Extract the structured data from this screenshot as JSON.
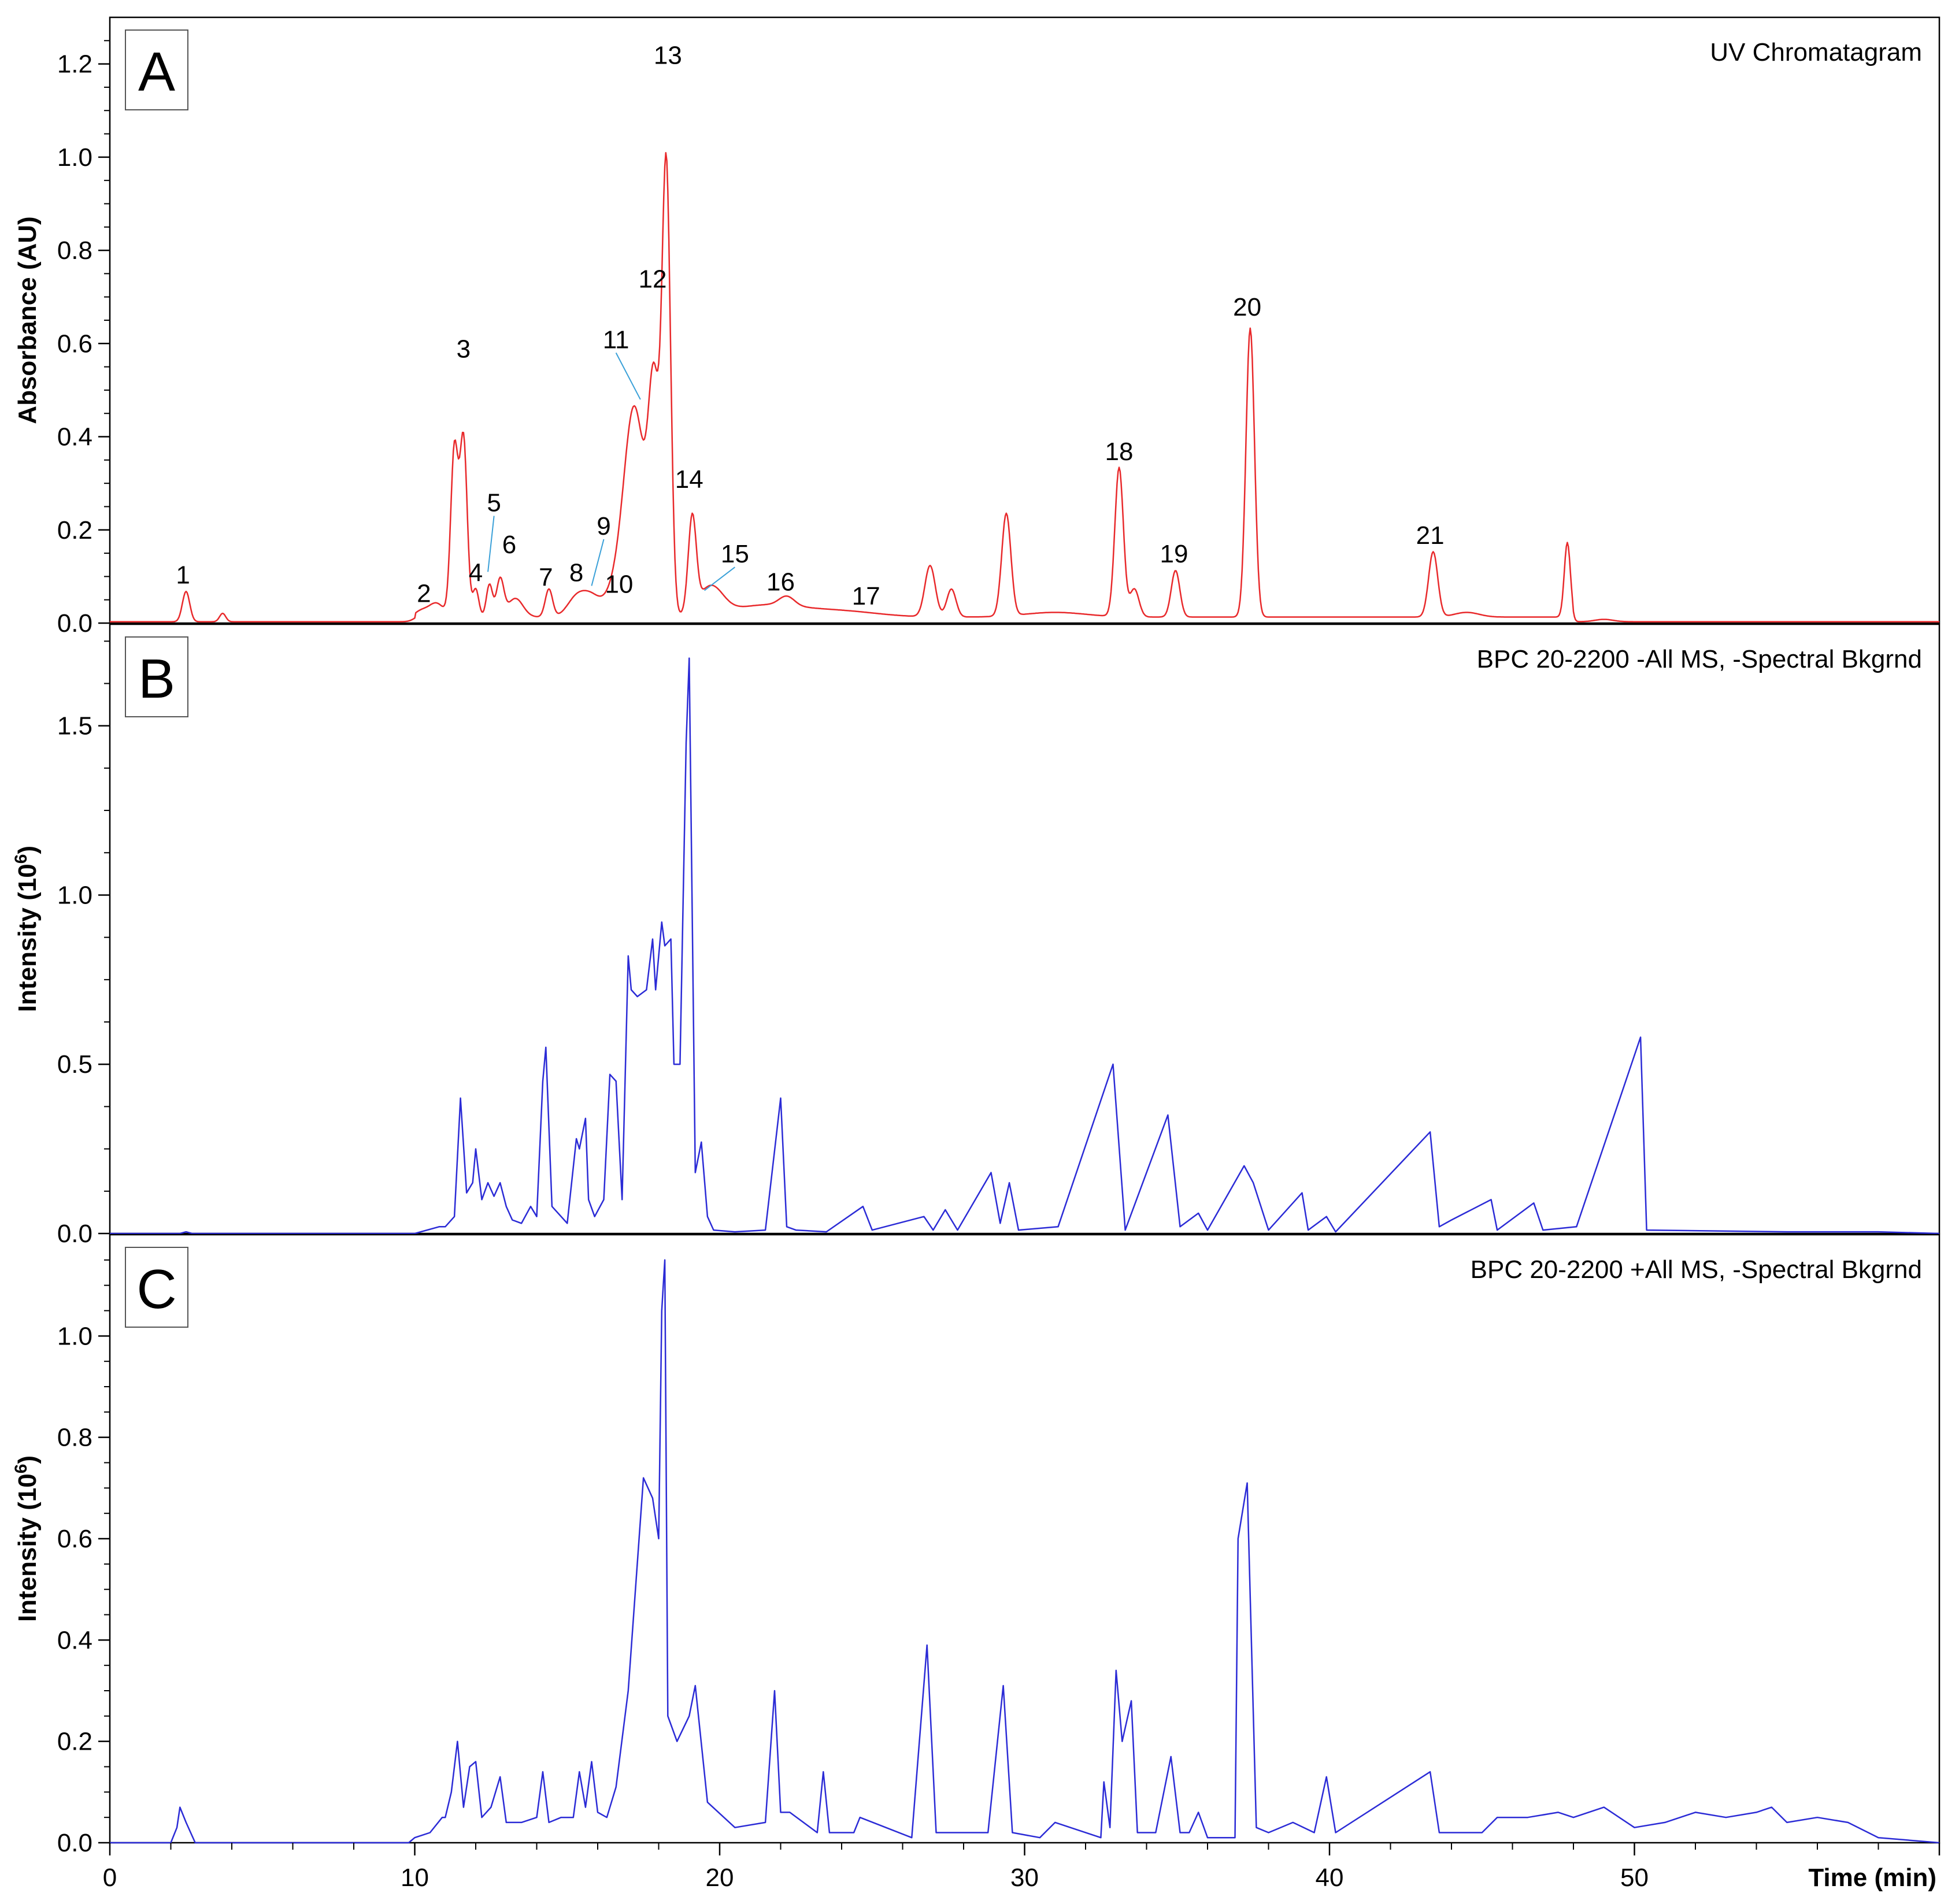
{
  "chart_data": [
    {
      "type": "line",
      "panel_letter": "A",
      "title": "UV Chromatagram",
      "ylabel": "Absorbance (AU)",
      "xlabel": "Time (min)",
      "xlim": [
        0,
        60
      ],
      "ylim": [
        0,
        1.3
      ],
      "yticks": [
        "0.0",
        "0.2",
        "0.4",
        "0.6",
        "0.8",
        "1.0",
        "1.2"
      ],
      "xticks": [
        "0",
        "10",
        "20",
        "30",
        "40",
        "50"
      ],
      "color": "#e8292b",
      "baseline": 0.003,
      "peaks": [
        {
          "x": 2.5,
          "h": 0.065,
          "w": 0.12
        },
        {
          "x": 3.7,
          "h": 0.018,
          "w": 0.1
        },
        {
          "x": 10.2,
          "h": 0.012,
          "w": 0.2
        },
        {
          "x": 10.7,
          "h": 0.03,
          "w": 0.25
        },
        {
          "x": 11.3,
          "h": 0.36,
          "w": 0.12
        },
        {
          "x": 11.6,
          "h": 0.38,
          "w": 0.12
        },
        {
          "x": 12.0,
          "h": 0.06,
          "w": 0.1
        },
        {
          "x": 12.45,
          "h": 0.07,
          "w": 0.1
        },
        {
          "x": 12.8,
          "h": 0.08,
          "w": 0.12
        },
        {
          "x": 13.3,
          "h": 0.04,
          "w": 0.25
        },
        {
          "x": 14.4,
          "h": 0.06,
          "w": 0.12
        },
        {
          "x": 15.3,
          "h": 0.04,
          "w": 0.3
        },
        {
          "x": 15.8,
          "h": 0.04,
          "w": 0.3
        },
        {
          "x": 16.5,
          "h": 0.04,
          "w": 0.3
        },
        {
          "x": 17.2,
          "h": 0.45,
          "w": 0.35
        },
        {
          "x": 17.85,
          "h": 0.45,
          "w": 0.18
        },
        {
          "x": 18.25,
          "h": 0.95,
          "w": 0.14
        },
        {
          "x": 19.1,
          "h": 0.2,
          "w": 0.13
        },
        {
          "x": 19.7,
          "h": 0.06,
          "w": 0.4
        },
        {
          "x": 21.5,
          "h": 0.025,
          "w": 1.2
        },
        {
          "x": 22.2,
          "h": 0.02,
          "w": 0.25
        },
        {
          "x": 24.0,
          "h": 0.012,
          "w": 1.2
        },
        {
          "x": 26.9,
          "h": 0.11,
          "w": 0.17
        },
        {
          "x": 27.6,
          "h": 0.06,
          "w": 0.15
        },
        {
          "x": 29.4,
          "h": 0.22,
          "w": 0.15
        },
        {
          "x": 31.0,
          "h": 0.01,
          "w": 1.0
        },
        {
          "x": 33.1,
          "h": 0.32,
          "w": 0.14
        },
        {
          "x": 33.6,
          "h": 0.06,
          "w": 0.15
        },
        {
          "x": 34.95,
          "h": 0.1,
          "w": 0.14
        },
        {
          "x": 37.4,
          "h": 0.62,
          "w": 0.14
        },
        {
          "x": 43.4,
          "h": 0.14,
          "w": 0.15
        },
        {
          "x": 44.5,
          "h": 0.01,
          "w": 0.4
        },
        {
          "x": 47.8,
          "h": 0.16,
          "w": 0.1
        },
        {
          "x": 49.0,
          "h": 0.005,
          "w": 0.3
        }
      ],
      "labels": [
        {
          "text": "1",
          "x": 2.4,
          "y": 0.085
        },
        {
          "text": "2",
          "x": 10.3,
          "y": 0.045
        },
        {
          "text": "3",
          "x": 11.6,
          "y": 0.57
        },
        {
          "text": "4",
          "x": 12.0,
          "y": 0.09
        },
        {
          "text": "5",
          "x": 12.6,
          "y": 0.24,
          "lx": 12.4,
          "ly": 0.11
        },
        {
          "text": "6",
          "x": 13.1,
          "y": 0.15
        },
        {
          "text": "7",
          "x": 14.3,
          "y": 0.08
        },
        {
          "text": "8",
          "x": 15.3,
          "y": 0.09
        },
        {
          "text": "9",
          "x": 16.2,
          "y": 0.19,
          "lx": 15.8,
          "ly": 0.08
        },
        {
          "text": "10",
          "x": 16.7,
          "y": 0.065
        },
        {
          "text": "11",
          "x": 16.6,
          "y": 0.59,
          "lx": 17.4,
          "ly": 0.48
        },
        {
          "text": "12",
          "x": 17.8,
          "y": 0.72
        },
        {
          "text": "13",
          "x": 18.3,
          "y": 1.2
        },
        {
          "text": "14",
          "x": 19.0,
          "y": 0.29
        },
        {
          "text": "15",
          "x": 20.5,
          "y": 0.13,
          "lx": 19.5,
          "ly": 0.07
        },
        {
          "text": "16",
          "x": 22.0,
          "y": 0.07
        },
        {
          "text": "17",
          "x": 24.8,
          "y": 0.04
        },
        {
          "text": "18",
          "x": 33.1,
          "y": 0.35
        },
        {
          "text": "19",
          "x": 34.9,
          "y": 0.13
        },
        {
          "text": "20",
          "x": 37.3,
          "y": 0.66
        },
        {
          "text": "21",
          "x": 43.3,
          "y": 0.17
        }
      ]
    },
    {
      "type": "line",
      "panel_letter": "B",
      "title": "BPC 20-2200 -All MS, -Spectral Bkgrnd",
      "ylabel": "Intensity (10",
      "ylabel_sup": "6",
      "ylabel_end": ")",
      "xlim": [
        0,
        60
      ],
      "ylim": [
        0,
        1.8
      ],
      "yticks": [
        "0.0",
        "0.5",
        "1.0",
        "1.5"
      ],
      "color": "#2b2bd6",
      "x": [
        0,
        2.3,
        2.5,
        2.7,
        10.0,
        10.8,
        11.0,
        11.3,
        11.5,
        11.7,
        11.9,
        12.0,
        12.2,
        12.4,
        12.6,
        12.8,
        13.0,
        13.2,
        13.5,
        13.8,
        14.0,
        14.2,
        14.3,
        14.5,
        15.0,
        15.3,
        15.4,
        15.6,
        15.7,
        15.9,
        16.2,
        16.4,
        16.6,
        16.8,
        17.0,
        17.1,
        17.3,
        17.6,
        17.8,
        17.9,
        18.1,
        18.2,
        18.4,
        18.5,
        18.7,
        18.9,
        19.0,
        19.2,
        19.4,
        19.6,
        19.8,
        20.5,
        21.5,
        22.0,
        22.2,
        22.5,
        23.5,
        24.7,
        25.0,
        26.7,
        27.0,
        27.4,
        27.8,
        28.9,
        29.2,
        29.5,
        29.8,
        31.1,
        32.9,
        33.3,
        34.7,
        35.1,
        35.7,
        36.0,
        37.2,
        37.5,
        38.0,
        39.1,
        39.3,
        39.9,
        40.2,
        43.3,
        43.6,
        44.0,
        45.3,
        45.5,
        46.7,
        47.0,
        48.1,
        50.2,
        50.4,
        55.0,
        58.0,
        60.0
      ],
      "y": [
        0,
        0,
        0.005,
        0,
        0,
        0.02,
        0.02,
        0.05,
        0.4,
        0.12,
        0.15,
        0.25,
        0.1,
        0.15,
        0.11,
        0.15,
        0.08,
        0.04,
        0.03,
        0.08,
        0.05,
        0.45,
        0.55,
        0.08,
        0.03,
        0.28,
        0.25,
        0.34,
        0.1,
        0.05,
        0.1,
        0.47,
        0.45,
        0.1,
        0.82,
        0.72,
        0.7,
        0.72,
        0.87,
        0.72,
        0.92,
        0.85,
        0.87,
        0.5,
        0.5,
        1.45,
        1.7,
        0.18,
        0.27,
        0.05,
        0.01,
        0.005,
        0.01,
        0.4,
        0.02,
        0.01,
        0.005,
        0.08,
        0.01,
        0.05,
        0.01,
        0.07,
        0.01,
        0.18,
        0.03,
        0.15,
        0.01,
        0.02,
        0.5,
        0.01,
        0.35,
        0.02,
        0.06,
        0.01,
        0.2,
        0.15,
        0.01,
        0.12,
        0.01,
        0.05,
        0.005,
        0.3,
        0.02,
        0.04,
        0.1,
        0.01,
        0.09,
        0.01,
        0.02,
        0.58,
        0.01,
        0.005,
        0.005,
        0
      ]
    },
    {
      "type": "line",
      "panel_letter": "C",
      "title": "BPC 20-2200 +All MS, -Spectral Bkgrnd",
      "ylabel": "Intensity (10",
      "ylabel_sup": "6",
      "ylabel_end": ")",
      "xlim": [
        0,
        60
      ],
      "ylim": [
        0,
        1.2
      ],
      "yticks": [
        "0.0",
        "0.2",
        "0.4",
        "0.6",
        "0.8",
        "1.0"
      ],
      "color": "#2b2bd6",
      "x": [
        0,
        2.0,
        2.2,
        2.3,
        2.5,
        2.8,
        9.8,
        10.0,
        10.5,
        10.9,
        11.0,
        11.2,
        11.4,
        11.6,
        11.8,
        12.0,
        12.2,
        12.5,
        12.8,
        13.0,
        13.5,
        14.0,
        14.2,
        14.4,
        14.8,
        15.2,
        15.4,
        15.6,
        15.8,
        16.0,
        16.3,
        16.6,
        17.0,
        17.5,
        17.8,
        18.0,
        18.1,
        18.2,
        18.3,
        18.6,
        19.0,
        19.2,
        19.6,
        20.5,
        21.5,
        21.8,
        22.0,
        22.3,
        23.2,
        23.4,
        23.6,
        24.4,
        24.6,
        26.3,
        26.8,
        27.1,
        27.5,
        28.8,
        29.3,
        29.6,
        30.5,
        31.0,
        32.5,
        32.6,
        32.8,
        33.0,
        33.2,
        33.5,
        33.7,
        34.3,
        34.8,
        35.1,
        35.4,
        35.7,
        36.0,
        36.9,
        37.0,
        37.3,
        37.6,
        38.0,
        38.8,
        39.5,
        39.9,
        40.2,
        43.3,
        43.6,
        45.0,
        45.5,
        46.5,
        47.5,
        48.0,
        49.0,
        50.0,
        51.0,
        52.0,
        53.0,
        54.0,
        54.5,
        55.0,
        56.0,
        57.0,
        58.0,
        60.0
      ],
      "y": [
        0,
        0,
        0.03,
        0.07,
        0.04,
        0,
        0,
        0.01,
        0.02,
        0.05,
        0.05,
        0.1,
        0.2,
        0.07,
        0.15,
        0.16,
        0.05,
        0.07,
        0.13,
        0.04,
        0.04,
        0.05,
        0.14,
        0.04,
        0.05,
        0.05,
        0.14,
        0.07,
        0.16,
        0.06,
        0.05,
        0.11,
        0.3,
        0.72,
        0.68,
        0.6,
        1.05,
        1.15,
        0.25,
        0.2,
        0.25,
        0.31,
        0.08,
        0.03,
        0.04,
        0.3,
        0.06,
        0.06,
        0.02,
        0.14,
        0.02,
        0.02,
        0.05,
        0.01,
        0.39,
        0.02,
        0.02,
        0.02,
        0.31,
        0.02,
        0.01,
        0.04,
        0.01,
        0.12,
        0.03,
        0.34,
        0.2,
        0.28,
        0.02,
        0.02,
        0.17,
        0.02,
        0.02,
        0.06,
        0.01,
        0.01,
        0.6,
        0.71,
        0.03,
        0.02,
        0.04,
        0.02,
        0.13,
        0.02,
        0.14,
        0.02,
        0.02,
        0.05,
        0.05,
        0.06,
        0.05,
        0.07,
        0.03,
        0.04,
        0.06,
        0.05,
        0.06,
        0.07,
        0.04,
        0.05,
        0.04,
        0.01,
        0
      ]
    }
  ]
}
